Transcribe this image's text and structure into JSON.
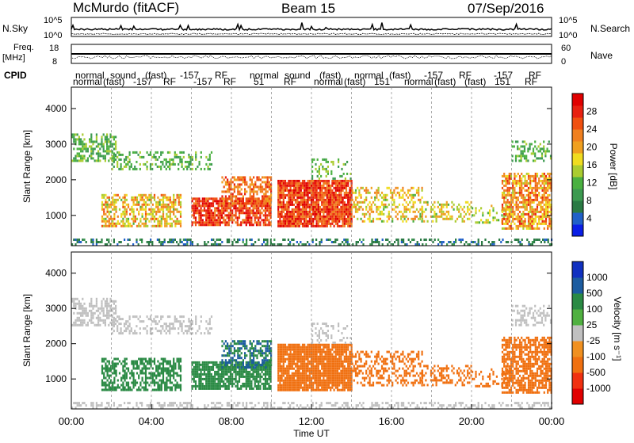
{
  "header": {
    "station": "McMurdo (fitACF)",
    "beam": "Beam 15",
    "date": "07/Sep/2016"
  },
  "panels": {
    "nsky_label": "N.Sky",
    "nsearch_label": "N.Search",
    "noise_ticks": [
      "10^5",
      "10^0"
    ],
    "freq_label_1": "Freq.",
    "freq_label_2": "[MHz]",
    "freq_ticks": [
      "18",
      "8"
    ],
    "nave_label": "Nave",
    "nave_ticks": [
      "60",
      "0"
    ],
    "cpid_label": "CPID"
  },
  "cpid_rows": {
    "top": [
      "normal",
      "sound",
      "(fast)",
      "-157",
      "RF",
      "normal",
      "sound",
      "(fast)",
      "normal",
      "(fast)",
      "-157",
      "RF",
      "-157",
      "RF"
    ],
    "bottom": [
      "normal",
      "(fast)",
      "-157",
      "RF",
      "-157",
      "RF",
      "51",
      "RF",
      "normal",
      "(fast)",
      "151",
      "normal",
      "(fast)",
      "(fast)",
      "151",
      "RF"
    ]
  },
  "chart_data": [
    {
      "type": "heatmap",
      "title": "",
      "xlabel": "Time UT",
      "ylabel": "Slant Range [km]",
      "x_ticks": [
        "00:00",
        "04:00",
        "08:00",
        "12:00",
        "16:00",
        "20:00",
        "00:00"
      ],
      "y_ticks": [
        1000,
        2000,
        3000,
        4000
      ],
      "ylim": [
        150,
        4600
      ],
      "colorbar": {
        "label": "Power [dB]",
        "ticks": [
          "4",
          "8",
          "12",
          "16",
          "20",
          "24",
          "28"
        ],
        "colors": [
          "#0a1ee6",
          "#2060c8",
          "#2a7a44",
          "#3c9a50",
          "#4ab040",
          "#aacc30",
          "#f0dc20",
          "#f0a020",
          "#f08020",
          "#f05010",
          "#e82010",
          "#e00000"
        ]
      }
    },
    {
      "type": "heatmap",
      "title": "",
      "xlabel": "Time UT",
      "ylabel": "Slant Range [km]",
      "x_ticks": [
        "00:00",
        "04:00",
        "08:00",
        "12:00",
        "16:00",
        "20:00",
        "00:00"
      ],
      "y_ticks": [
        1000,
        2000,
        3000,
        4000
      ],
      "ylim": [
        150,
        4600
      ],
      "colorbar": {
        "label": "Velocity [m s⁻¹]",
        "ticks": [
          "-1000",
          "-500",
          "-100",
          "-25",
          "25",
          "100",
          "500",
          "1000"
        ],
        "colors": [
          "#e00000",
          "#f03010",
          "#f07010",
          "#f09020",
          "#c0c0c0",
          "#50b040",
          "#2a8a44",
          "#1c5ca0",
          "#1030c0"
        ]
      }
    }
  ],
  "time_axis_label": "Time UT"
}
